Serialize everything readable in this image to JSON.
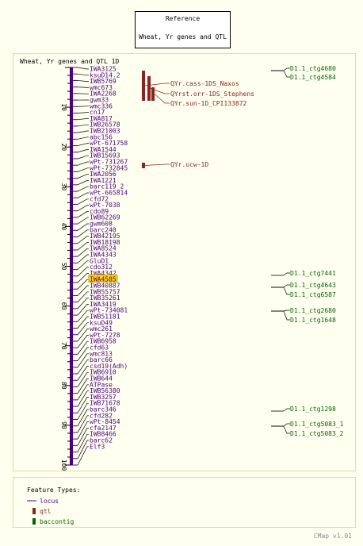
{
  "reference": {
    "line1": "Reference",
    "line2": "Wheat, Yr genes and QTL"
  },
  "map_title": "Wheat, Yr genes and QTL 1D",
  "axis": {
    "min": 0,
    "max": 100,
    "ticks": [
      "10",
      "20",
      "30",
      "40",
      "50",
      "60",
      "70",
      "80",
      "90",
      "100"
    ]
  },
  "colors": {
    "locus": "#4b0082",
    "qtl": "#8b2323",
    "contig": "#006400",
    "highlight": "#ffd700"
  },
  "loci": [
    "IWA3125",
    "ksuD14.2",
    "IWB5769",
    "wmc673",
    "IWA2268",
    "gwm33",
    "wmc336",
    "cn17",
    "IWA817",
    "IWB26578",
    "IWB21003",
    "abc156",
    "wPt-671758",
    "IWA1544",
    "IWB15693",
    "wPt-731267",
    "wPt-732845",
    "IWA2056",
    "IWA1221",
    "barc119_2",
    "wPt-665814",
    "cfd72",
    "wPt-7038",
    "cdo89",
    "IWB62269",
    "gwm608",
    "barc240",
    "IWB42195",
    "IWB18198",
    "IWA8524",
    "IWA4343",
    "GluD1",
    "cdo312",
    "IWA4342",
    "IWA4585",
    "IWB40887",
    "IWB55757",
    "IWB35261",
    "IWA3419",
    "wPt-734081",
    "IWB51181",
    "ksuD49",
    "wmc261",
    "wPt-7278",
    "IWB6958",
    "cfd63",
    "wmc813",
    "barc66",
    "csd19(Adh)",
    "IWB6910",
    "IWB644",
    "ATPase",
    "IWB56380",
    "IWB3257",
    "IWB71678",
    "barc346",
    "cfd282",
    "wPt-8454",
    "cfa2147",
    "IWB8466",
    "barc62",
    "Elf3"
  ],
  "highlighted_locus": "IWA4585",
  "qtls": [
    "QYr.cass-1DS_Naxos",
    "QYrst.orr-1DS_Stephens",
    "QYr.sun-1D_CPI133872",
    "QYr.ucw-1D"
  ],
  "contigs": [
    "D1.1_ctg4680",
    "D1.1_ctg4584",
    "D1.1_ctg7441",
    "D1.1_ctg4643",
    "D1.1_ctg6587",
    "D1.1_ctg2680",
    "D1.1_ctg1648",
    "D1.1_ctg1298",
    "D1.1_ctg5083_1",
    "D1.1_ctg5083_2"
  ],
  "legend": {
    "title": "Feature Types:",
    "locus": "locus",
    "qtl": "qtl",
    "contig": "baccontig"
  },
  "footer": "CMap v1.01"
}
